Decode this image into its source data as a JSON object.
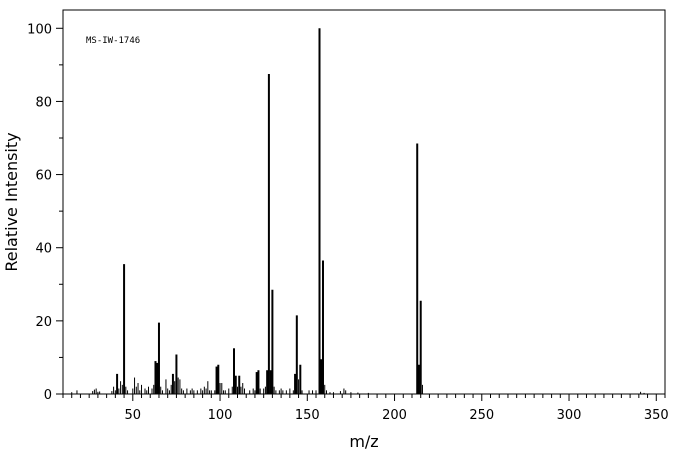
{
  "chart_data": {
    "type": "bar",
    "title": "",
    "annotation": "MS-IW-1746",
    "xlabel": "m/z",
    "ylabel": "Relative Intensity",
    "xlim": [
      10,
      355
    ],
    "ylim": [
      0,
      105
    ],
    "xticks": [
      50,
      100,
      150,
      200,
      250,
      300,
      350
    ],
    "yticks": [
      0,
      20,
      40,
      60,
      80,
      100
    ],
    "grid": false,
    "legend": "none",
    "bar_color": "#000000",
    "peaks": [
      {
        "mz": 15,
        "intensity": 0.5
      },
      {
        "mz": 18,
        "intensity": 1.0
      },
      {
        "mz": 27,
        "intensity": 0.8
      },
      {
        "mz": 28,
        "intensity": 1.2
      },
      {
        "mz": 29,
        "intensity": 1.5
      },
      {
        "mz": 30,
        "intensity": 0.6
      },
      {
        "mz": 31,
        "intensity": 0.7
      },
      {
        "mz": 38,
        "intensity": 0.8
      },
      {
        "mz": 39,
        "intensity": 2.0
      },
      {
        "mz": 40,
        "intensity": 1.0
      },
      {
        "mz": 41,
        "intensity": 5.5
      },
      {
        "mz": 42,
        "intensity": 1.5
      },
      {
        "mz": 43,
        "intensity": 3.5
      },
      {
        "mz": 44,
        "intensity": 2.5
      },
      {
        "mz": 45,
        "intensity": 35.5
      },
      {
        "mz": 46,
        "intensity": 2.0
      },
      {
        "mz": 47,
        "intensity": 1.0
      },
      {
        "mz": 50,
        "intensity": 1.5
      },
      {
        "mz": 51,
        "intensity": 4.5
      },
      {
        "mz": 52,
        "intensity": 2.0
      },
      {
        "mz": 53,
        "intensity": 3.0
      },
      {
        "mz": 54,
        "intensity": 1.0
      },
      {
        "mz": 55,
        "intensity": 2.5
      },
      {
        "mz": 57,
        "intensity": 1.5
      },
      {
        "mz": 58,
        "intensity": 1.0
      },
      {
        "mz": 59,
        "intensity": 2.0
      },
      {
        "mz": 61,
        "intensity": 1.5
      },
      {
        "mz": 62,
        "intensity": 2.5
      },
      {
        "mz": 63,
        "intensity": 9.0
      },
      {
        "mz": 64,
        "intensity": 8.5
      },
      {
        "mz": 65,
        "intensity": 19.5
      },
      {
        "mz": 66,
        "intensity": 2.0
      },
      {
        "mz": 67,
        "intensity": 1.0
      },
      {
        "mz": 69,
        "intensity": 4.0
      },
      {
        "mz": 70,
        "intensity": 1.5
      },
      {
        "mz": 71,
        "intensity": 1.0
      },
      {
        "mz": 72,
        "intensity": 2.5
      },
      {
        "mz": 73,
        "intensity": 5.5
      },
      {
        "mz": 74,
        "intensity": 3.5
      },
      {
        "mz": 75,
        "intensity": 10.8
      },
      {
        "mz": 76,
        "intensity": 4.5
      },
      {
        "mz": 77,
        "intensity": 4.0
      },
      {
        "mz": 78,
        "intensity": 1.5
      },
      {
        "mz": 79,
        "intensity": 1.0
      },
      {
        "mz": 81,
        "intensity": 1.5
      },
      {
        "mz": 83,
        "intensity": 1.0
      },
      {
        "mz": 84,
        "intensity": 1.5
      },
      {
        "mz": 85,
        "intensity": 1.0
      },
      {
        "mz": 87,
        "intensity": 1.0
      },
      {
        "mz": 89,
        "intensity": 1.5
      },
      {
        "mz": 90,
        "intensity": 1.0
      },
      {
        "mz": 91,
        "intensity": 2.0
      },
      {
        "mz": 92,
        "intensity": 1.5
      },
      {
        "mz": 93,
        "intensity": 3.5
      },
      {
        "mz": 94,
        "intensity": 1.0
      },
      {
        "mz": 95,
        "intensity": 1.0
      },
      {
        "mz": 97,
        "intensity": 1.0
      },
      {
        "mz": 98,
        "intensity": 7.5
      },
      {
        "mz": 99,
        "intensity": 8.0
      },
      {
        "mz": 100,
        "intensity": 3.0
      },
      {
        "mz": 101,
        "intensity": 3.0
      },
      {
        "mz": 102,
        "intensity": 1.0
      },
      {
        "mz": 103,
        "intensity": 1.0
      },
      {
        "mz": 105,
        "intensity": 1.5
      },
      {
        "mz": 107,
        "intensity": 2.0
      },
      {
        "mz": 108,
        "intensity": 12.5
      },
      {
        "mz": 109,
        "intensity": 5.0
      },
      {
        "mz": 110,
        "intensity": 2.0
      },
      {
        "mz": 111,
        "intensity": 5.0
      },
      {
        "mz": 112,
        "intensity": 2.0
      },
      {
        "mz": 113,
        "intensity": 3.0
      },
      {
        "mz": 114,
        "intensity": 1.5
      },
      {
        "mz": 117,
        "intensity": 1.0
      },
      {
        "mz": 119,
        "intensity": 1.5
      },
      {
        "mz": 120,
        "intensity": 1.0
      },
      {
        "mz": 121,
        "intensity": 6.0
      },
      {
        "mz": 122,
        "intensity": 6.5
      },
      {
        "mz": 123,
        "intensity": 1.5
      },
      {
        "mz": 125,
        "intensity": 1.5
      },
      {
        "mz": 126,
        "intensity": 2.0
      },
      {
        "mz": 127,
        "intensity": 6.5
      },
      {
        "mz": 128,
        "intensity": 87.5
      },
      {
        "mz": 129,
        "intensity": 6.5
      },
      {
        "mz": 130,
        "intensity": 28.5
      },
      {
        "mz": 131,
        "intensity": 2.0
      },
      {
        "mz": 132,
        "intensity": 1.0
      },
      {
        "mz": 134,
        "intensity": 1.0
      },
      {
        "mz": 135,
        "intensity": 1.5
      },
      {
        "mz": 136,
        "intensity": 1.0
      },
      {
        "mz": 138,
        "intensity": 1.0
      },
      {
        "mz": 140,
        "intensity": 1.5
      },
      {
        "mz": 142,
        "intensity": 1.0
      },
      {
        "mz": 143,
        "intensity": 5.5
      },
      {
        "mz": 144,
        "intensity": 21.5
      },
      {
        "mz": 145,
        "intensity": 4.0
      },
      {
        "mz": 146,
        "intensity": 8.0
      },
      {
        "mz": 147,
        "intensity": 1.0
      },
      {
        "mz": 151,
        "intensity": 1.0
      },
      {
        "mz": 153,
        "intensity": 1.0
      },
      {
        "mz": 155,
        "intensity": 1.0
      },
      {
        "mz": 157,
        "intensity": 100.0
      },
      {
        "mz": 158,
        "intensity": 9.5
      },
      {
        "mz": 159,
        "intensity": 36.5
      },
      {
        "mz": 160,
        "intensity": 2.5
      },
      {
        "mz": 161,
        "intensity": 1.0
      },
      {
        "mz": 163,
        "intensity": 0.5
      },
      {
        "mz": 165,
        "intensity": 0.5
      },
      {
        "mz": 169,
        "intensity": 0.8
      },
      {
        "mz": 171,
        "intensity": 1.5
      },
      {
        "mz": 172,
        "intensity": 1.0
      },
      {
        "mz": 175,
        "intensity": 0.5
      },
      {
        "mz": 179,
        "intensity": 0.4
      },
      {
        "mz": 185,
        "intensity": 0.3
      },
      {
        "mz": 213,
        "intensity": 68.5
      },
      {
        "mz": 214,
        "intensity": 8.0
      },
      {
        "mz": 215,
        "intensity": 25.5
      },
      {
        "mz": 216,
        "intensity": 2.5
      },
      {
        "mz": 341,
        "intensity": 0.6
      },
      {
        "mz": 343,
        "intensity": 0.3
      }
    ]
  }
}
